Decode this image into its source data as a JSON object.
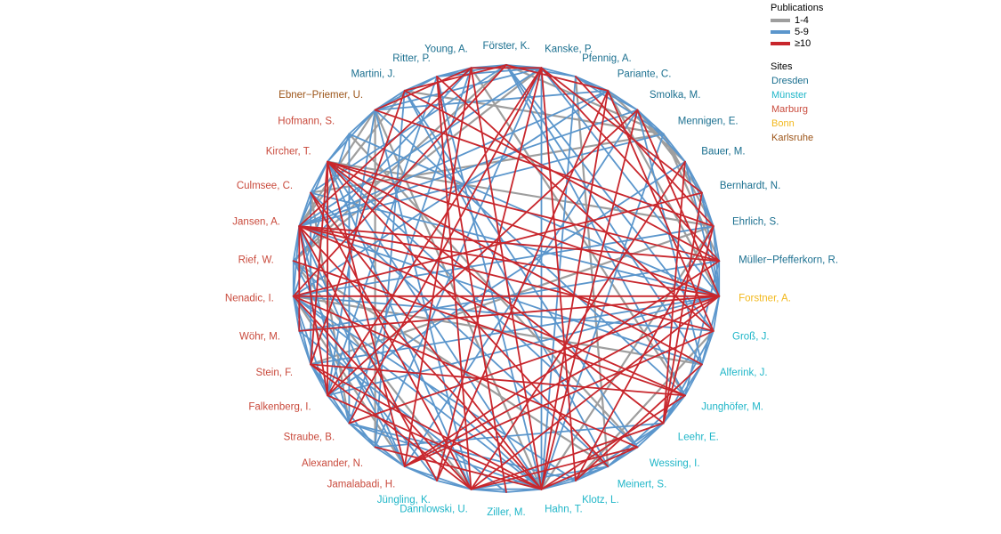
{
  "legend": {
    "publications_title": "Publications",
    "publications": [
      {
        "label": "1-4",
        "color": "#9e9e9e"
      },
      {
        "label": "5-9",
        "color": "#5b96cc"
      },
      {
        "label": "≥10",
        "color": "#c8262c"
      }
    ],
    "sites_title": "Sites",
    "sites": [
      {
        "label": "Dresden",
        "color": "#1a6f8f"
      },
      {
        "label": "Münster",
        "color": "#1fb6c8"
      },
      {
        "label": "Marburg",
        "color": "#c94a3c"
      },
      {
        "label": "Bonn",
        "color": "#f2b81c"
      },
      {
        "label": "Karlsruhe",
        "color": "#9c5418"
      }
    ]
  },
  "nodes": [
    {
      "name": "Förster, K.",
      "site": "Dresden"
    },
    {
      "name": "Kanske, P.",
      "site": "Dresden"
    },
    {
      "name": "Pfennig, A.",
      "site": "Dresden"
    },
    {
      "name": "Pariante, C.",
      "site": "Dresden"
    },
    {
      "name": "Smolka, M.",
      "site": "Dresden"
    },
    {
      "name": "Mennigen, E.",
      "site": "Dresden"
    },
    {
      "name": "Bauer, M.",
      "site": "Dresden"
    },
    {
      "name": "Bernhardt, N.",
      "site": "Dresden"
    },
    {
      "name": "Ehrlich, S.",
      "site": "Dresden"
    },
    {
      "name": "Müller−Pfefferkorn, R.",
      "site": "Dresden"
    },
    {
      "name": "Forstner, A.",
      "site": "Bonn"
    },
    {
      "name": "Groß, J.",
      "site": "Münster"
    },
    {
      "name": "Alferink, J.",
      "site": "Münster"
    },
    {
      "name": "Junghöfer, M.",
      "site": "Münster"
    },
    {
      "name": "Leehr, E.",
      "site": "Münster"
    },
    {
      "name": "Wessing, I.",
      "site": "Münster"
    },
    {
      "name": "Meinert, S.",
      "site": "Münster"
    },
    {
      "name": "Klotz, L.",
      "site": "Münster"
    },
    {
      "name": "Hahn, T.",
      "site": "Münster"
    },
    {
      "name": "Ziller, M.",
      "site": "Münster"
    },
    {
      "name": "Dannlowski, U.",
      "site": "Münster"
    },
    {
      "name": "Jüngling, K.",
      "site": "Münster"
    },
    {
      "name": "Jamalabadi, H.",
      "site": "Marburg"
    },
    {
      "name": "Alexander, N.",
      "site": "Marburg"
    },
    {
      "name": "Straube, B.",
      "site": "Marburg"
    },
    {
      "name": "Falkenberg, I.",
      "site": "Marburg"
    },
    {
      "name": "Stein, F.",
      "site": "Marburg"
    },
    {
      "name": "Wöhr, M.",
      "site": "Marburg"
    },
    {
      "name": "Nenadic, I.",
      "site": "Marburg"
    },
    {
      "name": "Rief, W.",
      "site": "Marburg"
    },
    {
      "name": "Jansen, A.",
      "site": "Marburg"
    },
    {
      "name": "Culmsee, C.",
      "site": "Marburg"
    },
    {
      "name": "Kircher, T.",
      "site": "Marburg"
    },
    {
      "name": "Hofmann, S.",
      "site": "Marburg"
    },
    {
      "name": "Ebner−Priemer, U.",
      "site": "Karlsruhe"
    },
    {
      "name": "Martini, J.",
      "site": "Dresden"
    },
    {
      "name": "Ritter, P.",
      "site": "Dresden"
    },
    {
      "name": "Young, A.",
      "site": "Dresden"
    }
  ]
}
